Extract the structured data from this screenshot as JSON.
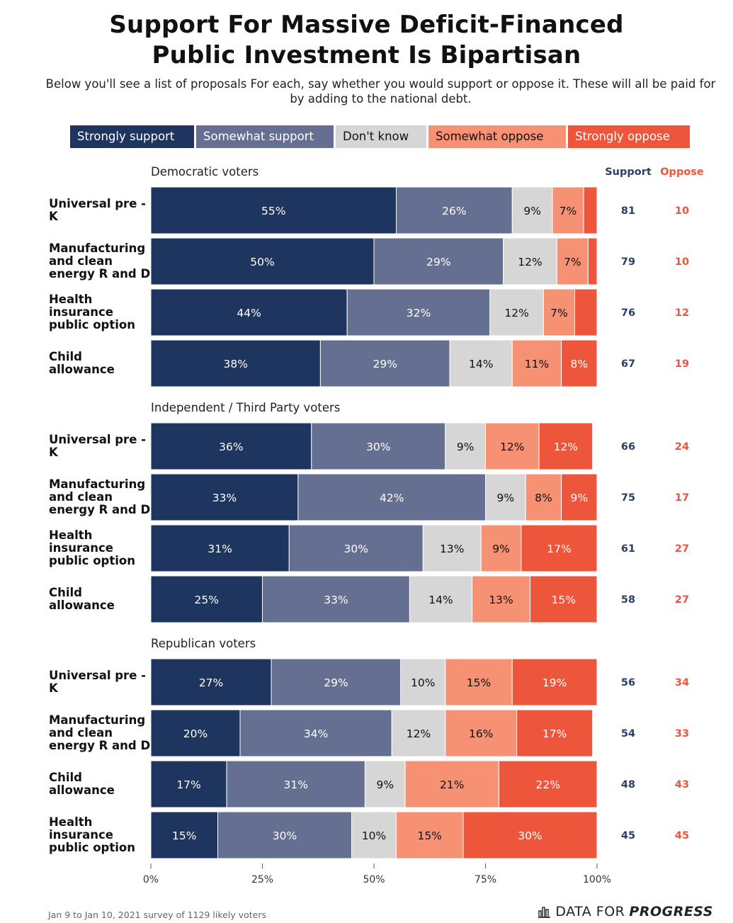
{
  "title": "Support For Massive Deficit-Financed Public Investment Is Bipartisan",
  "subtitle": "Below you'll see a list of proposals For each, say whether you would support or oppose it. These will all be paid for by adding to the national debt.",
  "legend": [
    {
      "label": "Strongly support",
      "color": "#1d355f",
      "text_color": "#ffffff"
    },
    {
      "label": "Somewhat support",
      "color": "#656f91",
      "text_color": "#ffffff"
    },
    {
      "label": "Don't know",
      "color": "#d6d6d6",
      "text_color": "#111111"
    },
    {
      "label": "Somewhat oppose",
      "color": "#f79174",
      "text_color": "#111111"
    },
    {
      "label": "Strongly oppose",
      "color": "#ee563c",
      "text_color": "#ffffff"
    }
  ],
  "col_headers": {
    "support": "Support",
    "oppose": "Oppose",
    "support_color": "#2c3f6b",
    "oppose_color": "#ee563c"
  },
  "footer": {
    "note": "Jan 9 to Jan 10, 2021 survey of 1129 likely voters",
    "brand_1": "DATA FOR",
    "brand_2": "PROGRESS"
  },
  "chart_data": {
    "type": "bar",
    "orientation": "horizontal",
    "stacked": true,
    "xlim": [
      0,
      100
    ],
    "x_ticks": [
      "0%",
      "25%",
      "50%",
      "75%",
      "100%"
    ],
    "series_names": [
      "Strongly support",
      "Somewhat support",
      "Don't know",
      "Somewhat oppose",
      "Strongly oppose"
    ],
    "groups": [
      {
        "label": "Democratic voters",
        "rows": [
          {
            "label": [
              "Universal pre -",
              "K"
            ],
            "values": [
              55,
              26,
              9,
              7,
              3
            ],
            "labels": [
              "55%",
              "26%",
              "9%",
              "7%",
              ""
            ],
            "support": 81,
            "oppose": 10
          },
          {
            "label": [
              "Manufacturing",
              "and clean",
              "energy R and D"
            ],
            "values": [
              50,
              29,
              12,
              7,
              3
            ],
            "labels": [
              "50%",
              "29%",
              "12%",
              "7%",
              ""
            ],
            "support": 79,
            "oppose": 10
          },
          {
            "label": [
              "Health",
              "insurance",
              "public option"
            ],
            "values": [
              44,
              32,
              12,
              7,
              5
            ],
            "labels": [
              "44%",
              "32%",
              "12%",
              "7%",
              ""
            ],
            "support": 76,
            "oppose": 12
          },
          {
            "label": [
              "Child",
              "allowance"
            ],
            "values": [
              38,
              29,
              14,
              11,
              8
            ],
            "labels": [
              "38%",
              "29%",
              "14%",
              "11%",
              "8%"
            ],
            "support": 67,
            "oppose": 19
          }
        ]
      },
      {
        "label": "Independent / Third Party voters",
        "rows": [
          {
            "label": [
              "Universal pre -",
              "K"
            ],
            "values": [
              36,
              30,
              9,
              12,
              12
            ],
            "labels": [
              "36%",
              "30%",
              "9%",
              "12%",
              "12%"
            ],
            "support": 66,
            "oppose": 24
          },
          {
            "label": [
              "Manufacturing",
              "and clean",
              "energy R and D"
            ],
            "values": [
              33,
              42,
              9,
              8,
              9
            ],
            "labels": [
              "33%",
              "42%",
              "9%",
              "8%",
              "9%"
            ],
            "support": 75,
            "oppose": 17
          },
          {
            "label": [
              "Health",
              "insurance",
              "public option"
            ],
            "values": [
              31,
              30,
              13,
              9,
              17
            ],
            "labels": [
              "31%",
              "30%",
              "13%",
              "9%",
              "17%"
            ],
            "support": 61,
            "oppose": 27
          },
          {
            "label": [
              "Child",
              "allowance"
            ],
            "values": [
              25,
              33,
              14,
              13,
              15
            ],
            "labels": [
              "25%",
              "33%",
              "14%",
              "13%",
              "15%"
            ],
            "support": 58,
            "oppose": 27
          }
        ]
      },
      {
        "label": "Republican voters",
        "rows": [
          {
            "label": [
              "Universal pre -",
              "K"
            ],
            "values": [
              27,
              29,
              10,
              15,
              19
            ],
            "labels": [
              "27%",
              "29%",
              "10%",
              "15%",
              "19%"
            ],
            "support": 56,
            "oppose": 34
          },
          {
            "label": [
              "Manufacturing",
              "and clean",
              "energy R and D"
            ],
            "values": [
              20,
              34,
              12,
              16,
              17
            ],
            "labels": [
              "20%",
              "34%",
              "12%",
              "16%",
              "17%"
            ],
            "support": 54,
            "oppose": 33
          },
          {
            "label": [
              "Child",
              "allowance"
            ],
            "values": [
              17,
              31,
              9,
              21,
              22
            ],
            "labels": [
              "17%",
              "31%",
              "9%",
              "21%",
              "22%"
            ],
            "support": 48,
            "oppose": 43
          },
          {
            "label": [
              "Health",
              "insurance",
              "public option"
            ],
            "values": [
              15,
              30,
              10,
              15,
              30
            ],
            "labels": [
              "15%",
              "30%",
              "10%",
              "15%",
              "30%"
            ],
            "support": 45,
            "oppose": 45
          }
        ]
      }
    ]
  }
}
